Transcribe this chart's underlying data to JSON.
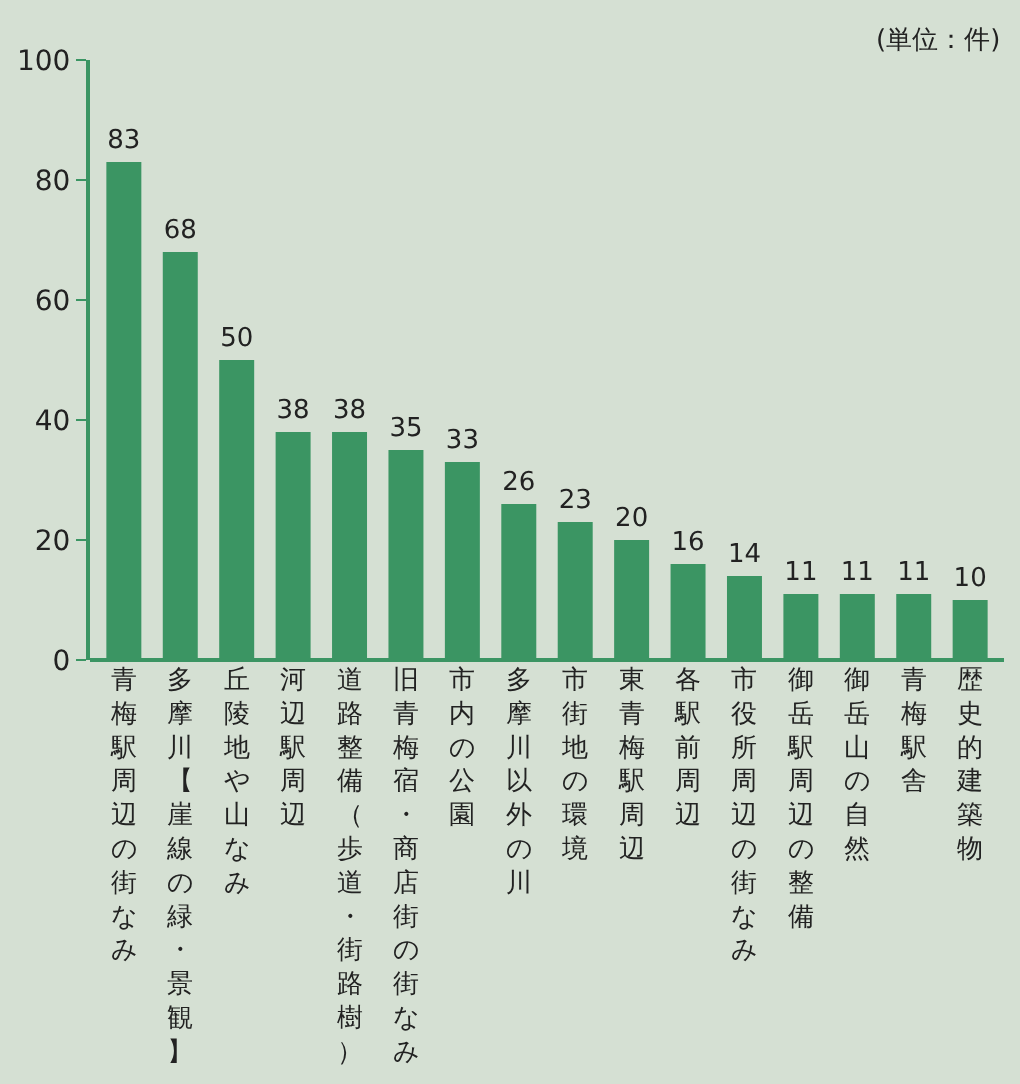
{
  "chart_data": {
    "type": "bar",
    "categories": [
      "青梅駅周辺の街なみ",
      "多摩川【崖線の緑・景観】",
      "丘陵地や山なみ",
      "河辺駅周辺",
      "道路整備（歩道・街路樹）",
      "旧青梅宿・商店街の街なみ",
      "市内の公園",
      "多摩川以外の川",
      "市街地の環境",
      "東青梅駅周辺",
      "各駅前周辺",
      "市役所周辺の街なみ",
      "御岳駅周辺の整備",
      "御岳山の自然",
      "青梅駅舎",
      "歴史的建築物"
    ],
    "values": [
      83,
      68,
      50,
      38,
      38,
      35,
      33,
      26,
      23,
      20,
      16,
      14,
      11,
      11,
      11,
      10
    ],
    "color": "#3b9563",
    "ylim": [
      0,
      100
    ],
    "yticks": [
      0,
      20,
      40,
      60,
      80,
      100
    ],
    "data_labels": true,
    "annotations": [
      "(単位：件)"
    ]
  }
}
